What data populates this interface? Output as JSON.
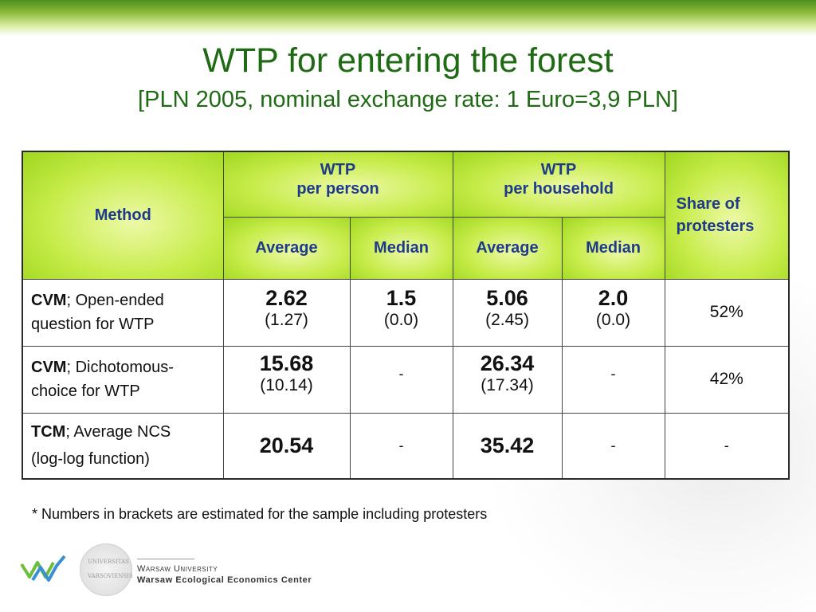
{
  "slide": {
    "title": "WTP for entering the forest",
    "subtitle": "[PLN 2005, nominal exchange rate: 1 Euro=3,9 PLN]"
  },
  "table": {
    "header": {
      "method": "Method",
      "wtp_person_line1": "WTP",
      "wtp_person_line2": "per person",
      "wtp_household_line1": "WTP",
      "wtp_household_line2": "per household",
      "share_line1": "Share of",
      "share_line2": "protesters",
      "average": "Average",
      "median": "Median"
    },
    "rows": [
      {
        "method_bold": "CVM",
        "method_rest_line1": "; Open-ended",
        "method_line2": "question for WTP",
        "person_avg": "2.62",
        "person_avg_sub": "(1.27)",
        "person_med": "1.5",
        "person_med_sub": "(0.0)",
        "household_avg": "5.06",
        "household_avg_sub": "(2.45)",
        "household_med": "2.0",
        "household_med_sub": "(0.0)",
        "share": "52%"
      },
      {
        "method_bold": "CVM",
        "method_rest_line1": "; Dichotomous-",
        "method_line2": "choice for WTP",
        "person_avg": "15.68",
        "person_avg_sub": "(10.14)",
        "person_med": "-",
        "household_avg": "26.34",
        "household_avg_sub": "(17.34)",
        "household_med": "-",
        "share": "42%"
      },
      {
        "method_bold": "TCM",
        "method_rest_line1": "; Average NCS",
        "method_line2": "(log-log function)",
        "person_avg": "20.54",
        "person_med": "-",
        "household_avg": "35.42",
        "household_med": "-",
        "share": "-"
      }
    ]
  },
  "footnote": "* Numbers in brackets are estimated for the sample including protesters",
  "footer": {
    "seal_text": "UNIVERSITAS VARSOVIENSIS",
    "org_line1": "Warsaw University",
    "org_line2": "Warsaw Ecological Economics Center"
  },
  "colors": {
    "title": "#1e6b14",
    "header_text": "#1e3a8a",
    "header_fill": "#b8e43a",
    "logo_green": "#6cbf3a",
    "logo_blue": "#3a8fd0"
  }
}
